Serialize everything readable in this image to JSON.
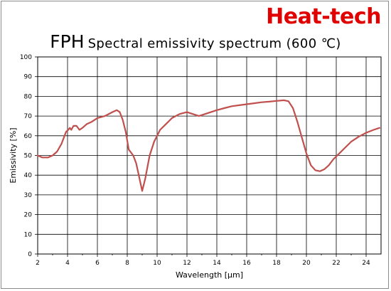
{
  "brand": "Heat-tech",
  "title": {
    "main": "FPH",
    "sub": "Spectral emissivity spectrum (600 ℃)"
  },
  "chart_data": {
    "type": "line",
    "xlabel": "Wavelength [μm]",
    "ylabel": "Emissivity [%]",
    "xlim": [
      2,
      25
    ],
    "ylim": [
      0,
      100
    ],
    "x_ticks": [
      2,
      4,
      6,
      8,
      10,
      12,
      14,
      16,
      18,
      20,
      22,
      24
    ],
    "y_ticks": [
      0,
      10,
      20,
      30,
      40,
      50,
      60,
      70,
      80,
      90,
      100
    ],
    "grid": true,
    "line_color": "#c0504d",
    "series": [
      {
        "x": [
          2.0,
          2.3,
          2.7,
          3.0,
          3.3,
          3.6,
          3.9,
          4.05,
          4.15,
          4.25,
          4.4,
          4.6,
          4.8,
          5.0,
          5.3,
          5.6,
          6.0,
          6.5,
          7.0,
          7.3,
          7.5,
          7.7,
          7.9,
          8.1,
          8.4,
          8.6,
          8.8,
          9.0,
          9.2,
          9.5,
          9.8,
          10.2,
          10.6,
          11.0,
          11.5,
          12.0,
          12.4,
          12.8,
          13.2,
          13.6,
          14.0,
          14.5,
          15.0,
          15.5,
          16.0,
          16.5,
          17.0,
          17.5,
          18.0,
          18.5,
          18.8,
          19.1,
          19.4,
          19.7,
          20.0,
          20.3,
          20.6,
          20.9,
          21.2,
          21.5,
          21.8,
          22.2,
          22.6,
          23.0,
          23.5,
          24.0,
          24.5,
          24.9
        ],
        "y": [
          50,
          49,
          49,
          50,
          52,
          56,
          62,
          63,
          64,
          63,
          65,
          65,
          63,
          64,
          66,
          67,
          69,
          70,
          72,
          73,
          72,
          68,
          62,
          53,
          50,
          46,
          39,
          32,
          38,
          50,
          57,
          63,
          66,
          69,
          71,
          72,
          71,
          70,
          71,
          72,
          73,
          74,
          75,
          75.5,
          76,
          76.5,
          77,
          77.3,
          77.7,
          78,
          77.5,
          74,
          67,
          59,
          51,
          45,
          42.5,
          42,
          43,
          45,
          48,
          51,
          54,
          57,
          59.5,
          61.5,
          63,
          64
        ]
      }
    ]
  }
}
